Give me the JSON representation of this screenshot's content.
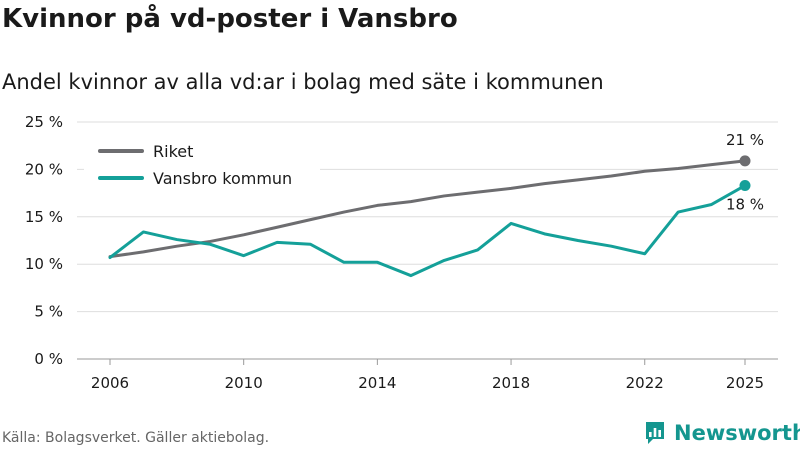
{
  "title": "Kvinnor på vd-poster i Vansbro",
  "subtitle": "Andel kvinnor av alla vd:ar i bolag med säte i kommunen",
  "source": "Källa: Bolagsverket. Gäller aktiebolag.",
  "brand": {
    "name": "Newsworthy",
    "logo_icon": "newsworthy-logo-icon",
    "color": "#14968f"
  },
  "chart_data": {
    "type": "line",
    "x": [
      2006,
      2007,
      2008,
      2009,
      2010,
      2011,
      2012,
      2013,
      2014,
      2015,
      2016,
      2017,
      2018,
      2019,
      2020,
      2021,
      2022,
      2023,
      2024,
      2025
    ],
    "series": [
      {
        "name": "Riket",
        "color": "#6d6d70",
        "values": [
          10.8,
          11.3,
          11.9,
          12.4,
          13.1,
          13.9,
          14.7,
          15.5,
          16.2,
          16.6,
          17.2,
          17.6,
          18.0,
          18.5,
          18.9,
          19.3,
          19.8,
          20.1,
          20.5,
          20.9
        ],
        "end_label": "21 %"
      },
      {
        "name": "Vansbro kommun",
        "color": "#14a099",
        "values": [
          10.7,
          13.4,
          12.6,
          12.1,
          10.9,
          12.3,
          12.1,
          10.2,
          10.2,
          8.8,
          10.4,
          11.5,
          14.3,
          13.2,
          12.5,
          11.9,
          11.1,
          15.5,
          16.3,
          18.3
        ],
        "end_label": "18 %"
      }
    ],
    "title": "Kvinnor på vd-poster i Vansbro",
    "subtitle": "Andel kvinnor av alla vd:ar i bolag med säte i kommunen",
    "xlabel": "",
    "ylabel": "",
    "ylim": [
      0,
      25
    ],
    "xlim": [
      2006,
      2025
    ],
    "yticks": [
      0,
      5,
      10,
      15,
      20,
      25
    ],
    "ytick_labels": [
      "0 %",
      "5 %",
      "10 %",
      "15 %",
      "20 %",
      "25 %"
    ],
    "xticks": [
      2006,
      2010,
      2014,
      2018,
      2022,
      2025
    ],
    "xtick_labels": [
      "2006",
      "2010",
      "2014",
      "2018",
      "2022",
      "2025"
    ],
    "grid": true,
    "legend_position": "top-left"
  }
}
